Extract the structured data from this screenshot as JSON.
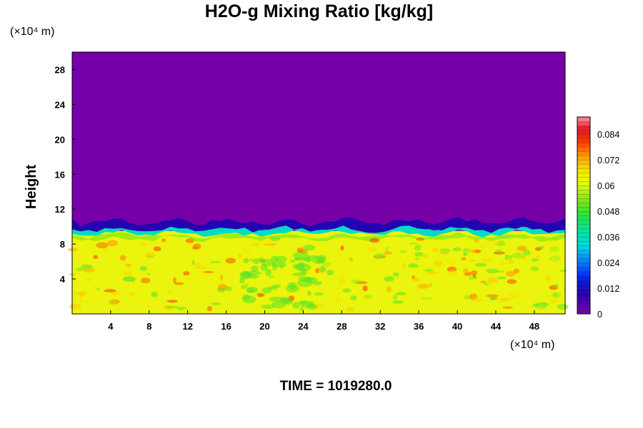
{
  "chart_data": {
    "type": "heatmap",
    "title": "H2O-g Mixing Ratio [kg/kg]",
    "ylabel": "Height",
    "xlabel": "",
    "x_unit": "(×10⁴ m)",
    "y_unit": "(×10⁴ m)",
    "x_ticks": [
      4,
      8,
      12,
      16,
      20,
      24,
      28,
      32,
      36,
      40,
      44,
      48
    ],
    "y_ticks": [
      4,
      8,
      12,
      16,
      20,
      24,
      28
    ],
    "xlim": [
      0,
      51.2
    ],
    "ylim": [
      0,
      30
    ],
    "colorbar": {
      "ticks": [
        0,
        0.012,
        0.024,
        0.036,
        0.048,
        0.06,
        0.072,
        0.084
      ],
      "tick_labels": [
        "0",
        "0.012",
        "0.024",
        "0.036",
        "0.048",
        "0.06",
        "0.072",
        "0.084"
      ],
      "range": [
        0,
        0.092
      ],
      "levels": 46
    },
    "description_regions": [
      {
        "name": "dry-upper",
        "y_range": [
          10.5,
          30
        ],
        "value": 0
      },
      {
        "name": "moist-lower",
        "y_range": [
          0,
          9.5
        ],
        "value": 0.063
      }
    ],
    "footer": "TIME = 1019280.0"
  }
}
